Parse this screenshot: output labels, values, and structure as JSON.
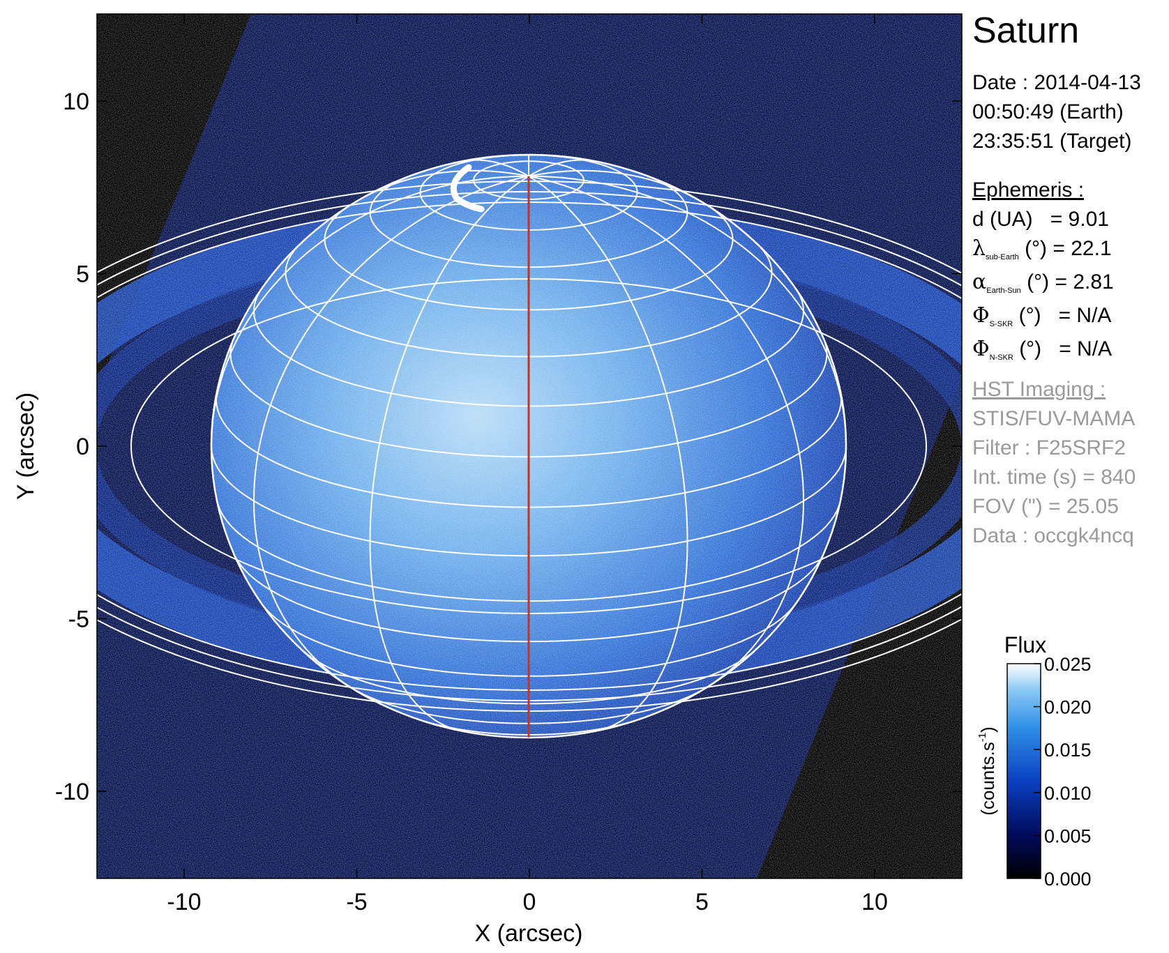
{
  "title": "Saturn",
  "date": {
    "line1": "Date : 2014-04-13",
    "line2": "00:50:49 (Earth)",
    "line3": "23:35:51 (Target)"
  },
  "ephemeris": {
    "header": "Ephemeris :",
    "d_label": "d (UA)",
    "d_value": "= 9.01",
    "lat_symbol": "λ",
    "lat_sub": "sub-Earth",
    "lat_unit": "(°)",
    "lat_value": "= 22.1",
    "alpha_symbol": "α",
    "alpha_sub": "Earth-Sun",
    "alpha_unit": "(°)",
    "alpha_value": "= 2.81",
    "phi_s_symbol": "Φ",
    "phi_s_sub": "S-SKR",
    "phi_s_unit": "(°)",
    "phi_s_value": "= N/A",
    "phi_n_symbol": "Φ",
    "phi_n_sub": "N-SKR",
    "phi_n_unit": "(°)",
    "phi_n_value": "= N/A"
  },
  "hst": {
    "header": "HST Imaging :",
    "instrument": "STIS/FUV-MAMA",
    "filter": "Filter : F25SRF2",
    "int_time": "Int. time (s) = 840",
    "fov": "FOV (\") = 25.05",
    "data": "Data : occgk4ncq"
  },
  "colorbar": {
    "title": "Flux",
    "unit_label": "(counts.s",
    "unit_sup": "-1",
    "unit_close": ")",
    "ticks": [
      "0.000",
      "0.005",
      "0.010",
      "0.015",
      "0.020",
      "0.025"
    ],
    "tick_values": [
      0.0,
      0.005,
      0.01,
      0.015,
      0.02,
      0.025
    ],
    "range": [
      0.0,
      0.025
    ]
  },
  "axes": {
    "xlabel": "X (arcsec)",
    "ylabel": "Y (arcsec)",
    "xticks": [
      "-10",
      "-5",
      "0",
      "5",
      "10"
    ],
    "xtick_values": [
      -10,
      -5,
      0,
      5,
      10
    ],
    "yticks": [
      "10",
      "5",
      "0",
      "-5",
      "-10"
    ],
    "ytick_values": [
      10,
      5,
      0,
      -5,
      -10
    ],
    "xlim": [
      -12.525,
      12.525
    ],
    "ylim": [
      -12.525,
      12.525
    ]
  },
  "colors": {
    "background": "#000000",
    "grid": "#ffffff",
    "meridian": "#c8321e",
    "colormap_low": "#000000",
    "colormap_mid": "#0a3fc0",
    "colormap_high": "#ffffff"
  }
}
